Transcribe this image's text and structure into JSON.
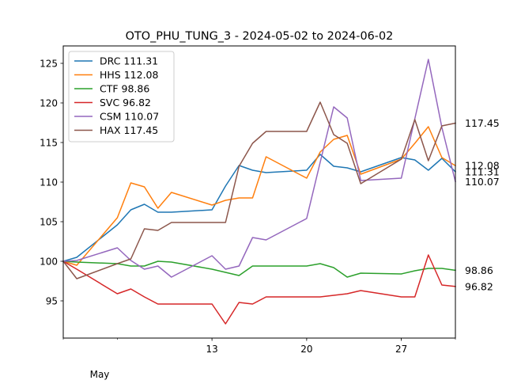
{
  "chart_data": {
    "type": "line",
    "title": "OTO_PHU_TUNG_3 - 2024-05-02 to 2024-06-02",
    "xlabel": "",
    "ylabel": "",
    "x": [
      "2024-05-02",
      "2024-05-03",
      "2024-05-06",
      "2024-05-07",
      "2024-05-08",
      "2024-05-09",
      "2024-05-10",
      "2024-05-13",
      "2024-05-14",
      "2024-05-15",
      "2024-05-16",
      "2024-05-17",
      "2024-05-20",
      "2024-05-21",
      "2024-05-22",
      "2024-05-23",
      "2024-05-24",
      "2024-05-27",
      "2024-05-28",
      "2024-05-29",
      "2024-05-30",
      "2024-05-31"
    ],
    "xlim": [
      "2024-05-02",
      "2024-05-31"
    ],
    "ylim": [
      90.3,
      127.2
    ],
    "y_ticks": [
      95,
      100,
      105,
      110,
      115,
      120,
      125
    ],
    "x_ticks": [
      {
        "date": "2024-05-13",
        "label": "13"
      },
      {
        "date": "2024-05-20",
        "label": "20"
      },
      {
        "date": "2024-05-27",
        "label": "27"
      }
    ],
    "x_minor_ticks": [
      "2024-05-02",
      "2024-05-06",
      "2024-05-13",
      "2024-05-20",
      "2024-05-27",
      "2024-05-31"
    ],
    "x_month_label": "May",
    "grid": false,
    "legend": "upper left",
    "series": [
      {
        "name": "DRC 111.31",
        "end_label": "111.31",
        "color": "#1f77b4",
        "values": [
          100.0,
          100.5,
          104.6,
          106.5,
          107.2,
          106.2,
          106.2,
          106.5,
          109.5,
          112.1,
          111.5,
          111.2,
          111.5,
          113.5,
          112.0,
          111.8,
          111.3,
          113.1,
          112.8,
          111.5,
          113.0,
          111.31
        ]
      },
      {
        "name": "HHS 112.08",
        "end_label": "112.08",
        "color": "#ff7f0e",
        "values": [
          100.0,
          99.5,
          105.5,
          109.9,
          109.4,
          106.7,
          108.7,
          107.1,
          107.7,
          108.0,
          108.0,
          113.2,
          110.5,
          113.8,
          115.4,
          115.9,
          111.0,
          112.9,
          114.9,
          117.0,
          113.1,
          112.08
        ]
      },
      {
        "name": "CTF 98.86",
        "end_label": "98.86",
        "color": "#2ca02c",
        "values": [
          100.0,
          99.9,
          99.7,
          99.4,
          99.4,
          100.0,
          99.9,
          99.0,
          98.6,
          98.2,
          99.4,
          99.4,
          99.4,
          99.7,
          99.2,
          98.0,
          98.5,
          98.4,
          98.8,
          99.1,
          99.1,
          98.86
        ]
      },
      {
        "name": "SVC 96.82",
        "end_label": "96.82",
        "color": "#d62728",
        "values": [
          100.0,
          99.0,
          95.9,
          96.5,
          95.5,
          94.6,
          94.6,
          94.6,
          92.1,
          94.8,
          94.6,
          95.5,
          95.5,
          95.5,
          95.7,
          95.9,
          96.3,
          95.5,
          95.5,
          100.8,
          97.0,
          96.82
        ]
      },
      {
        "name": "CSM 110.07",
        "end_label": "110.07",
        "color": "#9467bd",
        "values": [
          100.0,
          100.1,
          101.7,
          100.1,
          99.0,
          99.4,
          98.0,
          100.7,
          99.0,
          99.4,
          103.0,
          102.7,
          105.4,
          112.5,
          119.5,
          118.1,
          110.2,
          110.5,
          118.0,
          125.5,
          116.9,
          110.07
        ]
      },
      {
        "name": "HAX 117.45",
        "end_label": "117.45",
        "color": "#8c564b",
        "values": [
          100.0,
          97.8,
          99.7,
          100.3,
          104.1,
          103.9,
          104.9,
          104.9,
          104.9,
          112.0,
          114.9,
          116.4,
          116.4,
          120.1,
          116.0,
          114.9,
          109.8,
          112.9,
          117.9,
          112.7,
          117.1,
          117.45
        ]
      }
    ]
  }
}
